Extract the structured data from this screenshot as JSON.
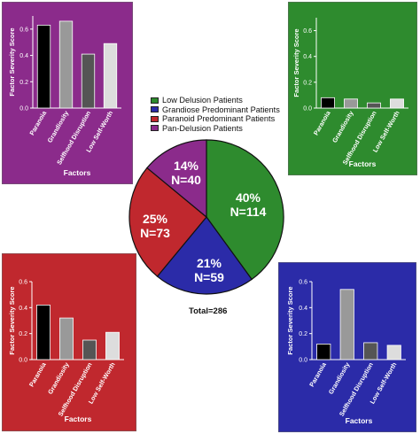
{
  "pie": {
    "legend": [
      {
        "label": "Low Delusion Patients",
        "color": "#2e8b2e"
      },
      {
        "label": "Grandiose Predominant Patients",
        "color": "#2b2ba8"
      },
      {
        "label": "Paranoid Predominant Patients",
        "color": "#c0282e"
      },
      {
        "label": "Pan-Delusion Patients",
        "color": "#8b2b8b"
      }
    ],
    "total": "Total=286"
  },
  "chart_data": [
    {
      "type": "pie",
      "slices": [
        {
          "name": "Low Delusion Patients",
          "percent": 40,
          "n": 114,
          "label_pct": "40%",
          "label_n": "N=114",
          "color": "#2e8b2e"
        },
        {
          "name": "Grandiose Predominant Patients",
          "percent": 21,
          "n": 59,
          "label_pct": "21%",
          "label_n": "N=59",
          "color": "#2b2ba8"
        },
        {
          "name": "Paranoid Predominant Patients",
          "percent": 25,
          "n": 73,
          "label_pct": "25%",
          "label_n": "N=73",
          "color": "#c0282e"
        },
        {
          "name": "Pan-Delusion Patients",
          "percent": 14,
          "n": 40,
          "label_pct": "14%",
          "label_n": "N=40",
          "color": "#8b2b8b"
        }
      ]
    },
    {
      "type": "bar",
      "panel": "top-left",
      "background": "#8b2b8b",
      "categories": [
        "Paranoia",
        "Grandiosity",
        "Selfhood Disruption",
        "Low Self-Worth"
      ],
      "values": [
        0.63,
        0.66,
        0.41,
        0.49
      ],
      "ylabel": "Factor Severity Score",
      "xlabel": "Factors",
      "ylim": [
        0,
        0.7
      ],
      "yticks": [
        "0.0",
        "0.2",
        "0.4",
        "0.6"
      ],
      "bar_colors": [
        "#000000",
        "#999999",
        "#555555",
        "#dddddd"
      ]
    },
    {
      "type": "bar",
      "panel": "top-right",
      "background": "#2e8b2e",
      "categories": [
        "Paranoia",
        "Grandiosity",
        "Selfhood Disruption",
        "Low Self-Worth"
      ],
      "values": [
        0.08,
        0.07,
        0.04,
        0.07
      ],
      "ylabel": "Factor Severity Score",
      "xlabel": "Factors",
      "ylim": [
        0,
        0.7
      ],
      "yticks": [
        "0.0",
        "0.2",
        "0.4",
        "0.6"
      ],
      "bar_colors": [
        "#000000",
        "#999999",
        "#555555",
        "#dddddd"
      ]
    },
    {
      "type": "bar",
      "panel": "bottom-left",
      "background": "#c0282e",
      "categories": [
        "Paranoia",
        "Grandiosity",
        "Selfhood Disruption",
        "Low Self-Worth"
      ],
      "values": [
        0.42,
        0.32,
        0.15,
        0.21
      ],
      "ylabel": "Factor Severity Score",
      "xlabel": "Factors",
      "ylim": [
        0,
        0.6
      ],
      "yticks": [
        "0.0",
        "0.2",
        "0.4",
        "0.6"
      ],
      "bar_colors": [
        "#000000",
        "#999999",
        "#555555",
        "#dddddd"
      ]
    },
    {
      "type": "bar",
      "panel": "bottom-right",
      "background": "#2b2ba8",
      "categories": [
        "Paranoia",
        "Grandiosity",
        "Selfhood Disruption",
        "Low Self-Worth"
      ],
      "values": [
        0.12,
        0.54,
        0.13,
        0.11
      ],
      "ylabel": "Factor Severity Score",
      "xlabel": "Factors",
      "ylim": [
        0,
        0.6
      ],
      "yticks": [
        "0.0",
        "0.2",
        "0.4",
        "0.6"
      ],
      "bar_colors": [
        "#000000",
        "#999999",
        "#555555",
        "#dddddd"
      ]
    }
  ]
}
